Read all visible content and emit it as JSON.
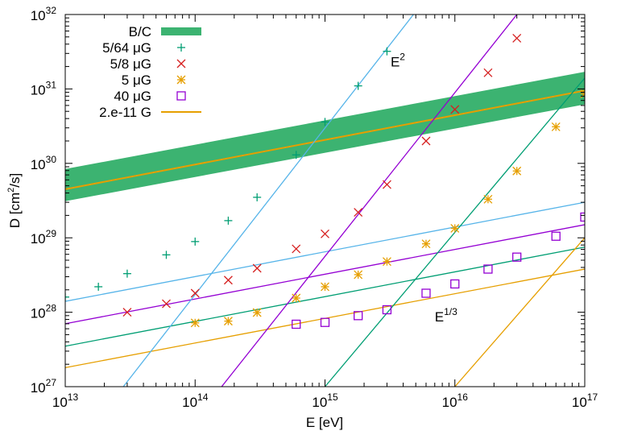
{
  "chart_data": {
    "type": "scatter",
    "scale": {
      "x": "log",
      "y": "log"
    },
    "xlabel": "E [eV]",
    "ylabel": {
      "base": "D [cm",
      "sup": "2",
      "tail": "/s]"
    },
    "xlim": [
      10000000000000.0,
      1e+17
    ],
    "ylim": [
      1e+27,
      1e+32
    ],
    "x_ticks": [
      {
        "base": "10",
        "exp": "13",
        "value": 10000000000000.0
      },
      {
        "base": "10",
        "exp": "14",
        "value": 100000000000000.0
      },
      {
        "base": "10",
        "exp": "15",
        "value": 1000000000000000.0
      },
      {
        "base": "10",
        "exp": "16",
        "value": 1e+16
      },
      {
        "base": "10",
        "exp": "17",
        "value": 1e+17
      }
    ],
    "y_ticks": [
      {
        "base": "10",
        "exp": "27",
        "value": 1e+27
      },
      {
        "base": "10",
        "exp": "28",
        "value": 1e+28
      },
      {
        "base": "10",
        "exp": "29",
        "value": 1e+29
      },
      {
        "base": "10",
        "exp": "30",
        "value": 1e+30
      },
      {
        "base": "10",
        "exp": "31",
        "value": 1e+31
      },
      {
        "base": "10",
        "exp": "32",
        "value": 1e+32
      }
    ],
    "band": {
      "name": "B/C",
      "color": "#3cb371",
      "x": [
        10000000000000.0,
        1e+17
      ],
      "lower": [
        3.1e+29,
        6.2e+30
      ],
      "upper": [
        8.4e+29,
        1.7e+31
      ]
    },
    "series": [
      {
        "name": "5/64 μG",
        "color": "#009e73",
        "marker": "plus",
        "points": [
          [
            10000000000000.0,
            1.6e+28
          ],
          [
            18000000000000.0,
            2.2e+28
          ],
          [
            30000000000000.0,
            3.3e+28
          ],
          [
            60000000000000.0,
            5.9e+28
          ],
          [
            100000000000000.0,
            8.9e+28
          ],
          [
            180000000000000.0,
            1.7e+29
          ],
          [
            300000000000000.0,
            3.5e+29
          ],
          [
            600000000000000.0,
            1.3e+30
          ],
          [
            1000000000000000.0,
            3.6e+30
          ],
          [
            1800000000000000.0,
            1.1e+31
          ],
          [
            3000000000000000.0,
            3.2e+31
          ]
        ]
      },
      {
        "name": "5/8 μG",
        "color": "#d62020",
        "marker": "cross",
        "points": [
          [
            30000000000000.0,
            1e+28
          ],
          [
            60000000000000.0,
            1.3e+28
          ],
          [
            100000000000000.0,
            1.8e+28
          ],
          [
            180000000000000.0,
            2.7e+28
          ],
          [
            300000000000000.0,
            3.9e+28
          ],
          [
            600000000000000.0,
            7.1e+28
          ],
          [
            1000000000000000.0,
            1.13e+29
          ],
          [
            1800000000000000.0,
            2.2e+29
          ],
          [
            3000000000000000.0,
            5.2e+29
          ],
          [
            6000000000000000.0,
            2e+30
          ],
          [
            1e+16,
            5.3e+30
          ],
          [
            1.8e+16,
            1.65e+31
          ],
          [
            3e+16,
            4.8e+31
          ]
        ]
      },
      {
        "name": "5 μG",
        "color": "#e69f00",
        "marker": "star",
        "points": [
          [
            100000000000000.0,
            7.2e+27
          ],
          [
            180000000000000.0,
            7.6e+27
          ],
          [
            300000000000000.0,
            9.9e+27
          ],
          [
            600000000000000.0,
            1.55e+28
          ],
          [
            1000000000000000.0,
            2.2e+28
          ],
          [
            1800000000000000.0,
            3.2e+28
          ],
          [
            3000000000000000.0,
            4.8e+28
          ],
          [
            6000000000000000.0,
            8.3e+28
          ],
          [
            1e+16,
            1.34e+29
          ],
          [
            1.8e+16,
            3.3e+29
          ],
          [
            3e+16,
            7.9e+29
          ],
          [
            6e+16,
            3.1e+30
          ],
          [
            1e+17,
            8.6e+30
          ]
        ]
      },
      {
        "name": "40 μG",
        "color": "#9400d3",
        "marker": "square",
        "points": [
          [
            600000000000000.0,
            6.9e+27
          ],
          [
            1000000000000000.0,
            7.3e+27
          ],
          [
            1800000000000000.0,
            9e+27
          ],
          [
            3000000000000000.0,
            1.08e+28
          ],
          [
            6000000000000000.0,
            1.8e+28
          ],
          [
            1e+16,
            2.4e+28
          ],
          [
            1.8e+16,
            3.8e+28
          ],
          [
            3e+16,
            5.5e+28
          ],
          [
            6e+16,
            1.05e+29
          ],
          [
            1e+17,
            1.9e+29
          ]
        ]
      }
    ],
    "fit_lines": [
      {
        "name": "2.e-11 G",
        "color": "#e69f00",
        "x": [
          10000000000000.0,
          1e+17
        ],
        "y": [
          4.5e+29,
          9.5e+30
        ],
        "legend": true
      },
      {
        "color": "#56b4e9",
        "x": [
          10000000000000.0,
          1e+17
        ],
        "y": [
          1.4e+28,
          3e+29
        ]
      },
      {
        "color": "#9400d3",
        "x": [
          10000000000000.0,
          1e+17
        ],
        "y": [
          7e+27,
          1.5e+29
        ]
      },
      {
        "color": "#009e73",
        "x": [
          10000000000000.0,
          1e+17
        ],
        "y": [
          3.5e+27,
          7.5e+28
        ]
      },
      {
        "color": "#e69f00",
        "x": [
          10000000000000.0,
          1e+17
        ],
        "y": [
          1.8e+27,
          3.8e+28
        ]
      },
      {
        "color": "#56b4e9",
        "x": [
          28000000000000.0,
          4800000000000000.0
        ],
        "y": [
          1e+27,
          1e+32
        ]
      },
      {
        "color": "#9400d3",
        "x": [
          160000000000000.0,
          3e+16
        ],
        "y": [
          1e+27,
          1e+32
        ]
      },
      {
        "color": "#009e73",
        "x": [
          1000000000000000.0,
          1e+17
        ],
        "y": [
          1e+27,
          1.4e+31
        ]
      },
      {
        "color": "#e69f00",
        "x": [
          1e+16,
          1e+17
        ],
        "y": [
          1e+27,
          1e+29
        ]
      }
    ],
    "annotations": [
      {
        "base": "E",
        "sup": "2",
        "x": 3200000000000000.0,
        "y": 2e+31
      },
      {
        "base": "E",
        "sup": "1/3",
        "x": 7000000000000000.0,
        "y": 7.5e+27
      }
    ]
  }
}
